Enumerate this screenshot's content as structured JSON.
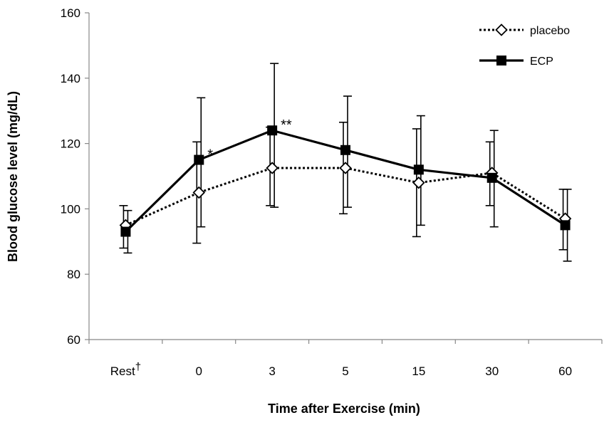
{
  "chart_data": {
    "type": "line",
    "title": "",
    "xlabel": "Time after Exercise (min)",
    "ylabel": "Blood glucose level (mg/dL)",
    "categories": [
      "Rest",
      "0",
      "3",
      "5",
      "15",
      "30",
      "60"
    ],
    "category_superscript": {
      "index": 0,
      "text": "†"
    },
    "ylim": [
      60,
      160
    ],
    "yticks": [
      "60",
      "80",
      "100",
      "120",
      "140",
      "160"
    ],
    "grid": false,
    "legend_position": "top-right",
    "series": [
      {
        "name": "placebo",
        "style": "dotted",
        "marker": "open-diamond",
        "color": "#000000",
        "values": [
          95,
          105,
          112.5,
          112.5,
          108,
          111,
          97
        ],
        "err_low": [
          88,
          89.5,
          101,
          98.5,
          91.5,
          101,
          87.5
        ],
        "err_high": [
          101,
          120.5,
          125,
          126.5,
          124.5,
          120.5,
          106
        ]
      },
      {
        "name": "ECP",
        "style": "solid",
        "marker": "filled-square",
        "color": "#000000",
        "values": [
          93,
          115,
          124,
          118,
          112,
          109.5,
          95
        ],
        "err_low": [
          86.5,
          94.5,
          100.5,
          100.5,
          95,
          94.5,
          84
        ],
        "err_high": [
          99.5,
          134,
          144.5,
          134.5,
          128.5,
          124,
          106
        ]
      }
    ],
    "annotations": [
      {
        "category": "0",
        "value": 117,
        "text": "*"
      },
      {
        "category": "3",
        "value": 126,
        "text": "**"
      }
    ]
  }
}
